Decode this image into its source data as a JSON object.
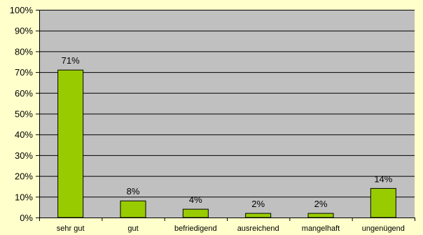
{
  "chart_data": {
    "type": "bar",
    "categories": [
      "sehr gut",
      "gut",
      "befriedigend",
      "ausreichend",
      "mangelhaft",
      "ungenügend"
    ],
    "values": [
      71,
      8,
      4,
      2,
      2,
      14
    ],
    "data_labels": [
      "71%",
      "8%",
      "4%",
      "2%",
      "2%",
      "14%"
    ],
    "ylim": [
      0,
      100
    ],
    "yticks": [
      0,
      10,
      20,
      30,
      40,
      50,
      60,
      70,
      80,
      90,
      100
    ],
    "ytick_labels": [
      "0%",
      "10%",
      "20%",
      "30%",
      "40%",
      "50%",
      "60%",
      "70%",
      "80%",
      "90%",
      "100%"
    ],
    "grid": true,
    "legend": "none"
  },
  "colors": {
    "page_background": "#ffffcc",
    "plot_background": "#c0c0c0",
    "bar_fill": "#99cc00",
    "bar_stroke": "#000000",
    "gridline": "#000000"
  }
}
